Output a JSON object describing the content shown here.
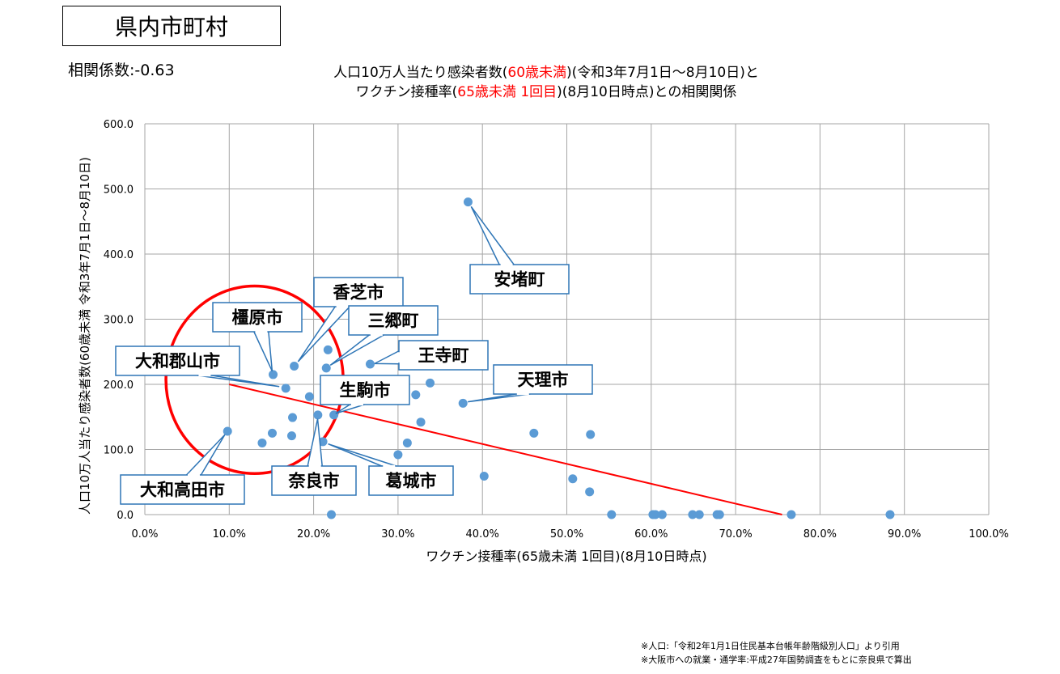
{
  "header": {
    "title": "県内市町村",
    "correlation": "相関係数:-0.63"
  },
  "chart_data": {
    "type": "scatter",
    "title_line1": {
      "pre": "人口10万人当たり感染者数(",
      "red": "60歳未満",
      "post": ")(令和3年7月1日～8月10日)と"
    },
    "title_line2": {
      "pre": "ワクチン接種率(",
      "red": "65歳未満 1回目",
      "post": ")(8月10日時点)との相関関係"
    },
    "xlabel": "ワクチン接種率(65歳未満 1回目)(8月10日時点)",
    "ylabel": "人口10万人当たり感染者数(60歳未満 令和3年7月1日～8月10日)",
    "xlim": [
      0,
      100
    ],
    "ylim": [
      0,
      600
    ],
    "x_ticks": [
      0,
      10,
      20,
      30,
      40,
      50,
      60,
      70,
      80,
      90,
      100
    ],
    "y_ticks": [
      0,
      100,
      200,
      300,
      400,
      500,
      600
    ],
    "x_tick_labels": [
      "0.0%",
      "10.0%",
      "20.0%",
      "30.0%",
      "40.0%",
      "50.0%",
      "60.0%",
      "70.0%",
      "80.0%",
      "90.0%",
      "100.0%"
    ],
    "y_tick_labels": [
      "0.0",
      "100.0",
      "200.0",
      "300.0",
      "400.0",
      "500.0",
      "600.0"
    ],
    "grid": true,
    "point_color": "#5b9bd5",
    "trendline_color": "#ff0000",
    "trendline": {
      "from": [
        10,
        200
      ],
      "to": [
        75.5,
        0
      ]
    },
    "highlight_circle": {
      "cx": 13,
      "cy": 207,
      "rx": 10.5,
      "ry": 144,
      "color": "#ff0000"
    },
    "points": [
      [
        38.3,
        480
      ],
      [
        15.2,
        215
      ],
      [
        17.7,
        228
      ],
      [
        21.7,
        253
      ],
      [
        21.5,
        225
      ],
      [
        26.7,
        231
      ],
      [
        16.7,
        194
      ],
      [
        19.5,
        181
      ],
      [
        33.8,
        202
      ],
      [
        32.1,
        184
      ],
      [
        37.7,
        171
      ],
      [
        20.5,
        153
      ],
      [
        22.4,
        153
      ],
      [
        17.5,
        149
      ],
      [
        32.7,
        142
      ],
      [
        46.1,
        125
      ],
      [
        52.8,
        123
      ],
      [
        9.8,
        128
      ],
      [
        15.1,
        125
      ],
      [
        17.4,
        121
      ],
      [
        13.9,
        110
      ],
      [
        21.1,
        112
      ],
      [
        31.1,
        110
      ],
      [
        30.0,
        92
      ],
      [
        40.2,
        59
      ],
      [
        50.7,
        55
      ],
      [
        52.7,
        35
      ],
      [
        22.1,
        0
      ],
      [
        55.3,
        0
      ],
      [
        60.2,
        0
      ],
      [
        60.5,
        0
      ],
      [
        61.3,
        0
      ],
      [
        64.9,
        0
      ],
      [
        65.7,
        0
      ],
      [
        67.8,
        0
      ],
      [
        68.1,
        0
      ],
      [
        76.6,
        0
      ],
      [
        88.3,
        0
      ]
    ],
    "annotations": [
      {
        "text": "安堵町",
        "point": [
          38.3,
          480
        ]
      },
      {
        "text": "香芝市",
        "point": [
          17.7,
          228
        ]
      },
      {
        "text": "橿原市",
        "point": [
          15.2,
          215
        ]
      },
      {
        "text": "三郷町",
        "point": [
          21.5,
          225
        ]
      },
      {
        "text": "王寺町",
        "point": [
          26.7,
          231
        ]
      },
      {
        "text": "大和郡山市",
        "point": [
          16.7,
          194
        ]
      },
      {
        "text": "天理市",
        "point": [
          37.7,
          171
        ]
      },
      {
        "text": "生駒市",
        "point": [
          22.4,
          153
        ]
      },
      {
        "text": "奈良市",
        "point": [
          20.5,
          153
        ]
      },
      {
        "text": "葛城市",
        "point": [
          21.1,
          112
        ]
      },
      {
        "text": "大和高田市",
        "point": [
          9.8,
          128
        ]
      }
    ]
  },
  "footnotes": [
    "※人口:「令和2年1月1日住民基本台帳年齢階級別人口」より引用",
    "※大阪市への就業・通学率:平成27年国勢調査をもとに奈良県で算出"
  ]
}
